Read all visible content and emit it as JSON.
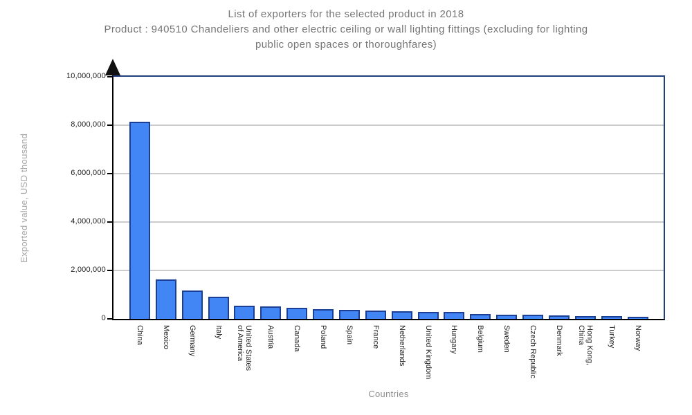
{
  "title": {
    "lines": [
      "List of exporters for the selected product in 2018",
      "Product : 940510 Chandeliers and other electric ceiling or wall lighting fittings (excluding for lighting",
      "public open spaces or thoroughfares)"
    ]
  },
  "chart_data": {
    "type": "bar",
    "title": "List of exporters for the selected product in 2018",
    "subtitle": "Product : 940510 Chandeliers and other electric ceiling or wall lighting fittings (excluding for lighting public open spaces or thoroughfares)",
    "xlabel": "Countries",
    "ylabel": "Exported value, USD thousand",
    "ylim": [
      0,
      10000000
    ],
    "grid": true,
    "legend_position": "none",
    "categories": [
      "China",
      "Mexico",
      "Germany",
      "Italy",
      "United States\nof America",
      "Austria",
      "Canada",
      "Poland",
      "Spain",
      "France",
      "Netherlands",
      "United Kingdom",
      "Hungary",
      "Belgium",
      "Sweden",
      "Czech Republic",
      "Denmark",
      "Hong Kong,\nChina",
      "Turkey",
      "Norway"
    ],
    "values": [
      8150000,
      1630000,
      1160000,
      900000,
      530000,
      500000,
      445000,
      405000,
      372000,
      345000,
      305000,
      285000,
      280000,
      205000,
      175000,
      172000,
      145000,
      118000,
      115000,
      82000
    ],
    "yticks": [
      {
        "value": 0,
        "label": "0"
      },
      {
        "value": 2000000,
        "label": "2,000,000"
      },
      {
        "value": 4000000,
        "label": "4,000,000"
      },
      {
        "value": 6000000,
        "label": "6,000,000"
      },
      {
        "value": 8000000,
        "label": "8,000,000"
      },
      {
        "value": 10000000,
        "label": "10,000,000"
      }
    ],
    "colors": {
      "bar_fill": "#4285f4",
      "bar_border": "#1b3f94",
      "chart_border": "#1f3d7a",
      "axis": "#000000",
      "grid": "#cccccc",
      "title_text": "#757575",
      "tick_text": "#1f1f1f",
      "axis_title_text": "#a6a6a6"
    }
  }
}
